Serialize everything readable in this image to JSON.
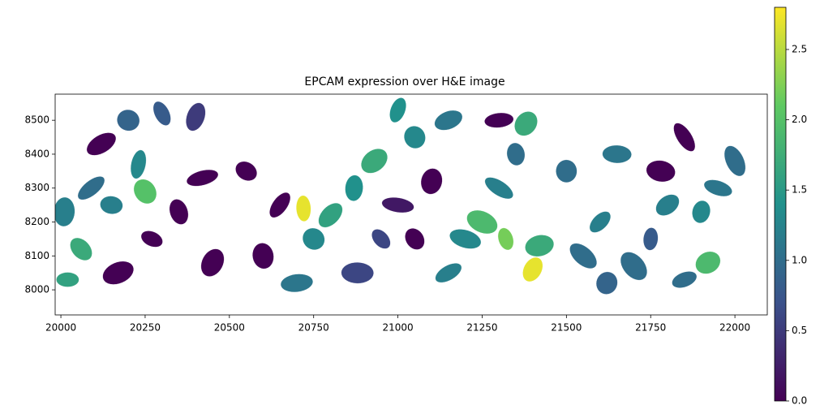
{
  "chart_data": {
    "type": "spatial",
    "title": "EPCAM expression over H&E image",
    "xlim": [
      19983,
      22096
    ],
    "ylim": [
      8577,
      7926
    ],
    "xticks": [
      20000,
      20250,
      20500,
      20750,
      21000,
      21250,
      21500,
      21750,
      22000
    ],
    "yticks": [
      8000,
      8100,
      8200,
      8300,
      8400,
      8500
    ],
    "image_extent": {
      "x": [
        20000,
        22000
      ],
      "y": [
        8000,
        8500
      ]
    },
    "colormap": "viridis",
    "clim": [
      0,
      2.8
    ],
    "cticks": [
      {
        "value": 0,
        "label": "0.0"
      },
      {
        "value": 0.5,
        "label": "0.5"
      },
      {
        "value": 1,
        "label": "1.0"
      },
      {
        "value": 1.5,
        "label": "1.5"
      },
      {
        "value": 2,
        "label": "2.0"
      },
      {
        "value": 2.5,
        "label": "2.5"
      }
    ],
    "cells": {
      "x": [
        20020,
        20060,
        20010,
        20090,
        20150,
        20250,
        20230,
        20120,
        20200,
        20300,
        20400,
        20170,
        20270,
        20350,
        20450,
        20420,
        20550,
        20600,
        20650,
        20700,
        20750,
        20720,
        20800,
        20880,
        20950,
        20870,
        20930,
        21000,
        21050,
        21100,
        21150,
        21200,
        21050,
        21000,
        21150,
        21250,
        21320,
        21400,
        21420,
        21300,
        21350,
        21380,
        21300,
        21550,
        21500,
        21600,
        21650,
        21700,
        21750,
        21800,
        21780,
        21850,
        21900,
        21920,
        21950,
        22000,
        21620,
        21850
      ],
      "y": [
        8030,
        8120,
        8230,
        8300,
        8250,
        8290,
        8370,
        8430,
        8500,
        8520,
        8510,
        8050,
        8150,
        8230,
        8080,
        8330,
        8350,
        8100,
        8250,
        8020,
        8150,
        8240,
        8220,
        8050,
        8150,
        8300,
        8380,
        8250,
        8150,
        8320,
        8050,
        8150,
        8450,
        8530,
        8500,
        8200,
        8150,
        8060,
        8130,
        8300,
        8400,
        8490,
        8500,
        8100,
        8350,
        8200,
        8400,
        8070,
        8150,
        8250,
        8350,
        8450,
        8230,
        8080,
        8300,
        8380,
        8020,
        8030
      ],
      "values": [
        1.6,
        1.7,
        1.2,
        1.0,
        1.2,
        2.0,
        1.3,
        0.0,
        0.9,
        0.8,
        0.5,
        0.0,
        0.0,
        0.0,
        0.0,
        0.0,
        0.0,
        0.0,
        0.0,
        1.1,
        1.3,
        2.7,
        1.6,
        0.6,
        0.6,
        1.4,
        1.7,
        0.2,
        0.0,
        0.0,
        1.2,
        1.3,
        1.3,
        1.4,
        1.1,
        1.9,
        2.2,
        2.7,
        1.7,
        1.2,
        1.0,
        1.7,
        0.0,
        1.0,
        1.0,
        1.2,
        1.1,
        1.0,
        0.8,
        1.2,
        0.0,
        0.0,
        1.3,
        1.9,
        1.1,
        1.0,
        0.9,
        1.0
      ]
    }
  }
}
